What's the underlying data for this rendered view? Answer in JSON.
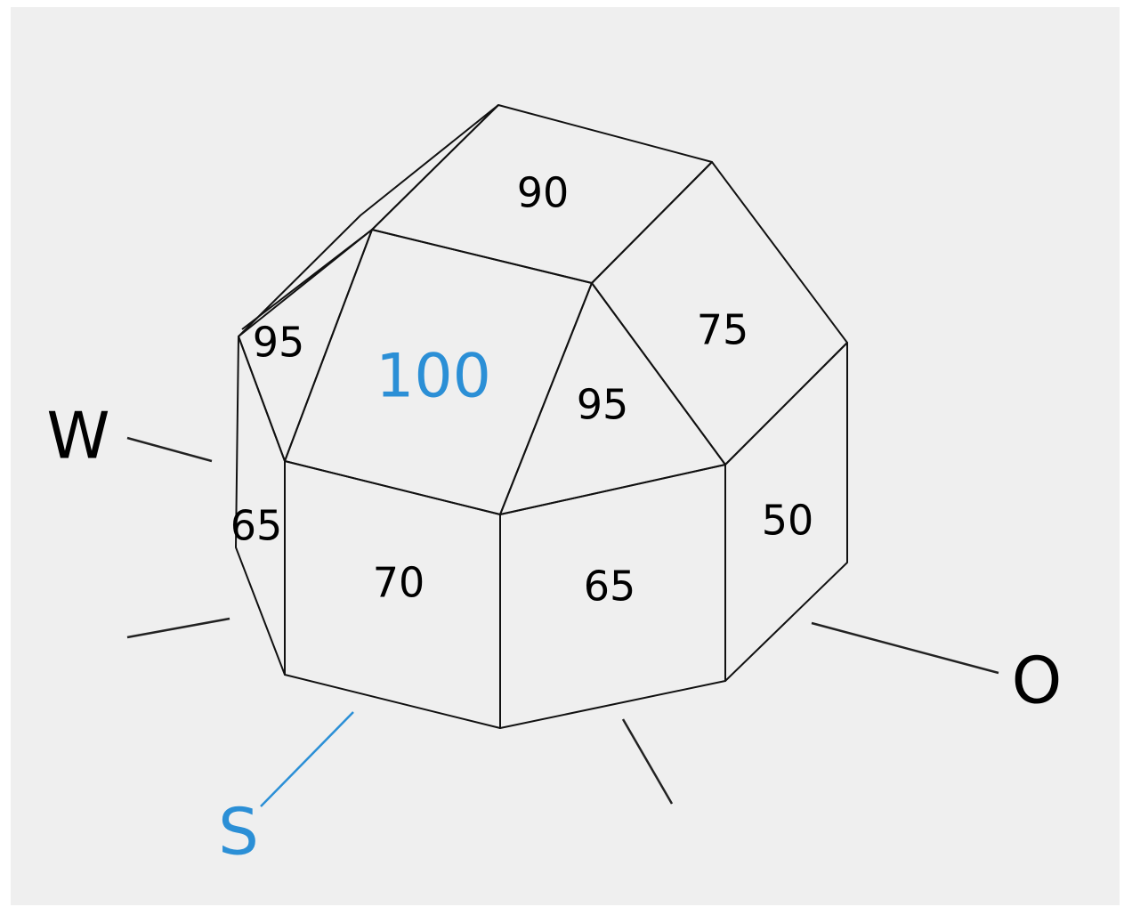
{
  "faces": [
    {
      "value": 90
    },
    {
      "value": 75
    },
    {
      "value": 95
    },
    {
      "value": 100,
      "color": "#2b8fd6"
    },
    {
      "value": 95
    },
    {
      "value": 65
    },
    {
      "value": 70
    },
    {
      "value": 65
    },
    {
      "value": 50
    }
  ],
  "directions": [
    {
      "label": "W"
    },
    {
      "label": "S",
      "color": "#2b8fd6"
    },
    {
      "label": "O"
    }
  ]
}
